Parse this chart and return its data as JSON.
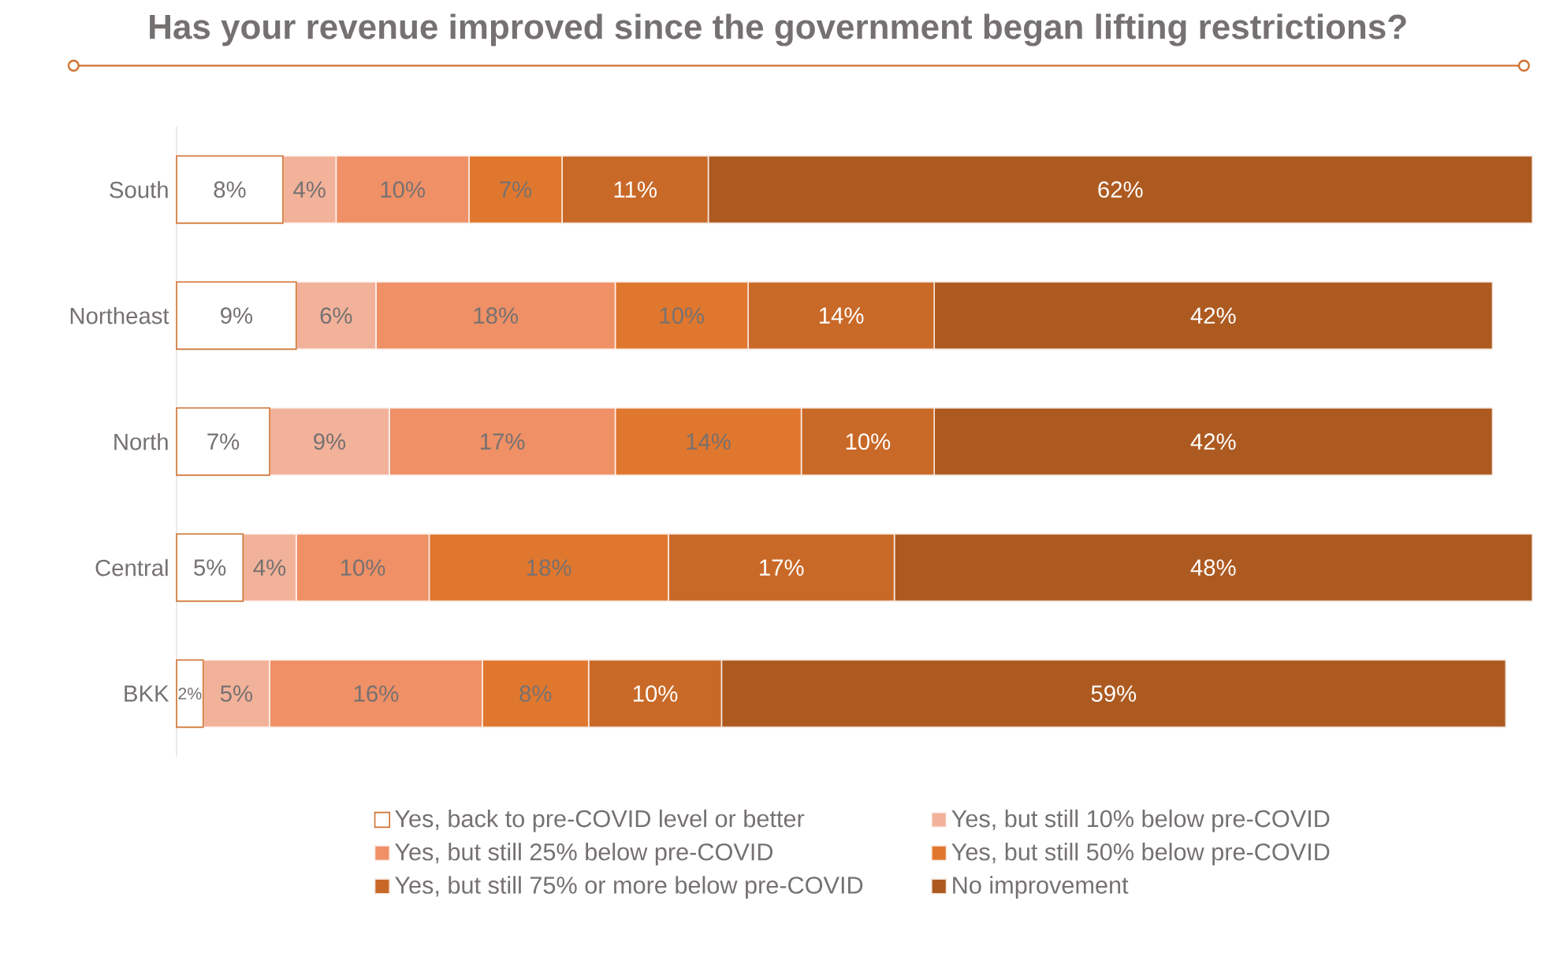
{
  "chart_data": {
    "type": "bar",
    "orientation": "horizontal",
    "stacked": true,
    "legend": "bottom",
    "title": "Has your revenue improved since the government began lifting restrictions?",
    "categories": [
      "South",
      "Northeast",
      "North",
      "Central",
      "BKK"
    ],
    "series": [
      {
        "name": "Yes, back to pre-COVID level or better",
        "color": "#ffffff",
        "values": [
          8,
          9,
          7,
          5,
          2
        ],
        "value_labels": [
          "8%",
          "9%",
          "7%",
          "5%",
          "2%"
        ]
      },
      {
        "name": "Yes, but still 10% below pre-COVID",
        "color": "#f2b29a",
        "values": [
          4,
          6,
          9,
          4,
          5
        ],
        "value_labels": [
          "4%",
          "6%",
          "9%",
          "4%",
          "5%"
        ]
      },
      {
        "name": "Yes, but still 25% below pre-COVID",
        "color": "#ef9066",
        "values": [
          10,
          18,
          17,
          10,
          16
        ],
        "value_labels": [
          "10%",
          "18%",
          "17%",
          "10%",
          "16%"
        ]
      },
      {
        "name": "Yes, but still 50% below pre-COVID",
        "color": "#e0772e",
        "values": [
          7,
          10,
          14,
          18,
          8
        ],
        "value_labels": [
          "7%",
          "10%",
          "14%",
          "18%",
          "8%"
        ]
      },
      {
        "name": "Yes, but still 75% or more below pre-COVID",
        "color": "#c96928",
        "values": [
          11,
          14,
          10,
          17,
          10
        ],
        "value_labels": [
          "11%",
          "14%",
          "10%",
          "17%",
          "10%"
        ]
      },
      {
        "name": "No improvement",
        "color": "#ad5a21",
        "values": [
          62,
          42,
          42,
          48,
          59
        ],
        "value_labels": [
          "62%",
          "42%",
          "42%",
          "48%",
          "59%"
        ]
      }
    ]
  }
}
